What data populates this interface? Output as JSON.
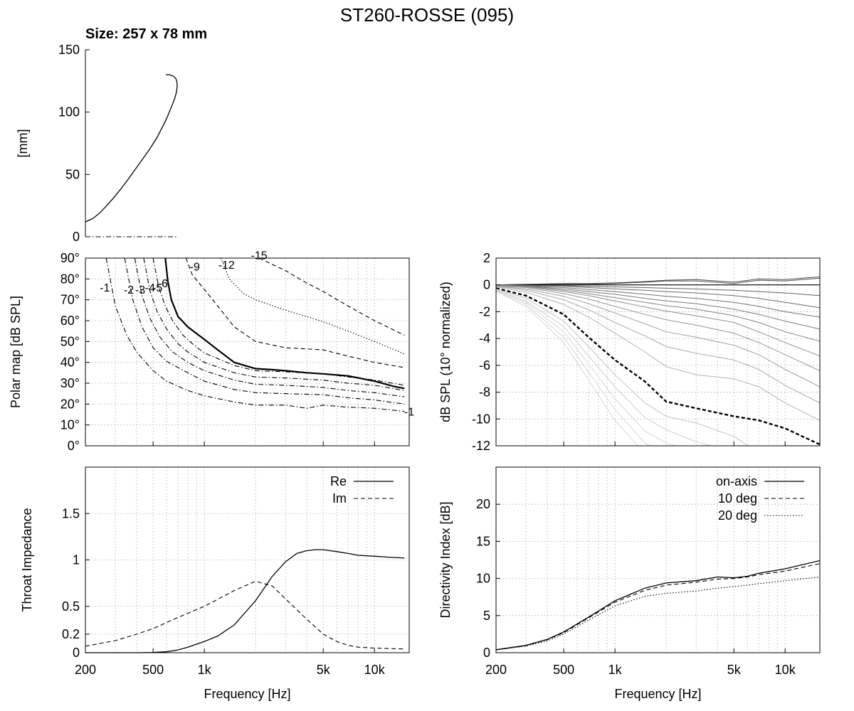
{
  "figure": {
    "title": "ST260-ROSSE (095)",
    "subtitle": "Size: 257 x 78 mm"
  },
  "chart_data": [
    {
      "id": "profile",
      "type": "line",
      "ylabel": "[mm]",
      "ylim": [
        0,
        150
      ],
      "yticks": [
        0,
        50,
        100,
        150
      ],
      "grid": false,
      "series": [
        {
          "style": "solid",
          "x": [
            0,
            10,
            20,
            30,
            40,
            50,
            60,
            70,
            80,
            90,
            100,
            110,
            115,
            120,
            125,
            128,
            129,
            128.5,
            127,
            123,
            118,
            113
          ],
          "y": [
            12,
            14.5,
            19,
            25,
            31.5,
            38.5,
            46,
            54,
            62,
            70,
            79,
            90,
            96,
            103,
            110,
            116,
            121,
            124.5,
            127,
            129,
            130,
            130
          ]
        },
        {
          "style": "dashdot",
          "x": [
            0,
            128.5
          ],
          "y": [
            0,
            0
          ]
        }
      ]
    },
    {
      "id": "polar_map",
      "type": "line",
      "ylabel": "Polar map [dB SPL]",
      "xscale": "log",
      "xlim": [
        200,
        16000
      ],
      "ylim": [
        0,
        90
      ],
      "yticks": [
        "0°",
        "10°",
        "20°",
        "30°",
        "40°",
        "50°",
        "60°",
        "70°",
        "80°",
        "90°"
      ],
      "grid": true,
      "series": [
        {
          "name": "-1",
          "style": "dashdot",
          "x": [
            265,
            300,
            350,
            400,
            500,
            600,
            800,
            1000,
            1500,
            2000,
            3000,
            4000,
            5000,
            7000,
            10000,
            15000
          ],
          "y": [
            90,
            67,
            53,
            45,
            36,
            31,
            26.5,
            24,
            21,
            19.5,
            19.5,
            18,
            19.5,
            18.5,
            18,
            16.5
          ]
        },
        {
          "name": "-2",
          "style": "dashdot",
          "x": [
            340,
            380,
            430,
            500,
            600,
            800,
            1000,
            1500,
            2000,
            3000,
            5000,
            7000,
            10000,
            15000
          ],
          "y": [
            90,
            70,
            57,
            47,
            40.5,
            35,
            31,
            27,
            25.5,
            25,
            24.5,
            23,
            22,
            20
          ]
        },
        {
          "name": "-3",
          "style": "dashdot",
          "x": [
            390,
            430,
            480,
            550,
            650,
            800,
            1000,
            1500,
            2000,
            3000,
            5000,
            7000,
            10000,
            15000
          ],
          "y": [
            90,
            72,
            61,
            52,
            45,
            40,
            36,
            31.5,
            29.5,
            29,
            28,
            26.5,
            25.5,
            23.5
          ]
        },
        {
          "name": "-4",
          "style": "dashdot",
          "x": [
            440,
            480,
            530,
            600,
            700,
            800,
            1000,
            1500,
            2000,
            3000,
            5000,
            7000,
            10000,
            15000
          ],
          "y": [
            90,
            74,
            64,
            56,
            49,
            45,
            40,
            35,
            33,
            32.5,
            31.5,
            30,
            29,
            26.5
          ]
        },
        {
          "name": "-5",
          "style": "dashdot",
          "x": [
            500,
            540,
            590,
            650,
            750,
            850,
            1000,
            1500,
            2000,
            3000,
            5000,
            7000,
            10000,
            15000
          ],
          "y": [
            90,
            76,
            67,
            60,
            53,
            49,
            44.5,
            38.5,
            36,
            35.5,
            34.5,
            33,
            31.5,
            29
          ]
        },
        {
          "name": "-6",
          "style": "solid-bold",
          "x": [
            590,
            610,
            640,
            700,
            800,
            1000,
            1200,
            1500,
            2000,
            2500,
            3000,
            4000,
            5000,
            7000,
            10000,
            13000,
            15000
          ],
          "y": [
            90,
            79,
            70,
            62,
            57,
            51,
            46,
            40,
            37,
            36.5,
            36,
            35,
            34.5,
            33.5,
            31,
            28.5,
            27.5
          ]
        },
        {
          "name": "-9",
          "style": "dashed",
          "x": [
            780,
            850,
            1000,
            1200,
            1500,
            2000,
            3000,
            5000,
            7000,
            10000,
            15000
          ],
          "y": [
            90,
            82,
            75,
            67,
            57,
            50,
            47,
            46,
            43,
            40,
            37.5
          ]
        },
        {
          "name": "-12",
          "style": "dotted",
          "x": [
            1250,
            1400,
            1700,
            2000,
            3000,
            5000,
            7000,
            10000,
            15000
          ],
          "y": [
            90,
            80,
            73,
            70,
            65,
            59.5,
            55,
            50,
            44
          ]
        },
        {
          "name": "-15",
          "style": "dashed",
          "x": [
            2100,
            2500,
            3000,
            4000,
            5000,
            7000,
            10000,
            15000
          ],
          "y": [
            90,
            87,
            84,
            78,
            74,
            67,
            60,
            53
          ]
        }
      ],
      "annotations": [
        {
          "text": "-1",
          "x": 260,
          "y": 76
        },
        {
          "text": "-2",
          "x": 360,
          "y": 75
        },
        {
          "text": "-3",
          "x": 420,
          "y": 75
        },
        {
          "text": "-4",
          "x": 480,
          "y": 76
        },
        {
          "text": "-5",
          "x": 530,
          "y": 76
        },
        {
          "text": "-6",
          "x": 570,
          "y": 78
        },
        {
          "text": "-9",
          "x": 880,
          "y": 86
        },
        {
          "text": "-12",
          "x": 1350,
          "y": 87
        },
        {
          "text": "-15",
          "x": 2100,
          "y": 91.5
        },
        {
          "text": "-1",
          "x": 16000,
          "y": 16.5
        }
      ]
    },
    {
      "id": "normalized_spl",
      "type": "line",
      "ylabel": "dB SPL (10° normalized)",
      "xscale": "log",
      "xlim": [
        200,
        16000
      ],
      "ylim": [
        -12,
        2
      ],
      "yticks": [
        -12,
        -10,
        -8,
        -6,
        -4,
        -2,
        0,
        2
      ],
      "grid": true,
      "x": [
        200,
        300,
        500,
        700,
        1000,
        1500,
        2000,
        3000,
        5000,
        7000,
        10000,
        16000
      ],
      "series": [
        {
          "style": "thin",
          "y": [
            0,
            0.05,
            0.1,
            0.1,
            0.15,
            0.25,
            0.35,
            0.4,
            0.2,
            0.45,
            0.4,
            0.6
          ]
        },
        {
          "style": "thin",
          "y": [
            0,
            0.03,
            0.05,
            0.05,
            0.1,
            0.2,
            0.3,
            0.3,
            0.1,
            0.35,
            0.3,
            0.5
          ]
        },
        {
          "style": "axis",
          "y": [
            0,
            0,
            0,
            0,
            0,
            0,
            0,
            0,
            0,
            0,
            0,
            0
          ]
        },
        {
          "style": "thin",
          "y": [
            0,
            -0.03,
            -0.05,
            -0.1,
            -0.15,
            -0.2,
            -0.25,
            -0.3,
            -0.4,
            -0.5,
            -0.6,
            -0.8
          ]
        },
        {
          "style": "thin",
          "y": [
            0,
            -0.05,
            -0.1,
            -0.2,
            -0.3,
            -0.4,
            -0.5,
            -0.6,
            -0.8,
            -1.0,
            -1.3,
            -1.7
          ]
        },
        {
          "style": "thin",
          "y": [
            0,
            -0.08,
            -0.2,
            -0.35,
            -0.5,
            -0.7,
            -0.85,
            -1.0,
            -1.3,
            -1.6,
            -2.0,
            -2.4
          ]
        },
        {
          "style": "thin",
          "y": [
            0,
            -0.1,
            -0.3,
            -0.5,
            -0.7,
            -1.0,
            -1.2,
            -1.4,
            -1.8,
            -2.2,
            -2.7,
            -3.3
          ]
        },
        {
          "style": "thin",
          "y": [
            -0.02,
            -0.12,
            -0.4,
            -0.65,
            -0.95,
            -1.3,
            -1.55,
            -1.8,
            -2.3,
            -2.8,
            -3.5,
            -4.2
          ]
        },
        {
          "style": "thin",
          "y": [
            -0.03,
            -0.15,
            -0.5,
            -0.8,
            -1.2,
            -1.65,
            -1.95,
            -2.3,
            -2.8,
            -3.5,
            -4.3,
            -5.3
          ]
        },
        {
          "style": "thin",
          "y": [
            -0.05,
            -0.2,
            -0.65,
            -1.05,
            -1.6,
            -2.2,
            -2.6,
            -3.0,
            -3.6,
            -4.3,
            -5.2,
            -6.4
          ]
        },
        {
          "style": "thin",
          "y": [
            -0.08,
            -0.3,
            -0.85,
            -1.4,
            -2.1,
            -2.9,
            -3.5,
            -3.9,
            -4.5,
            -5.2,
            -6.3,
            -7.6
          ]
        },
        {
          "style": "thin",
          "y": [
            -0.1,
            -0.4,
            -1.1,
            -1.85,
            -2.8,
            -3.8,
            -4.6,
            -5.1,
            -5.6,
            -6.3,
            -7.5,
            -8.8
          ]
        },
        {
          "style": "thin",
          "y": [
            -0.15,
            -0.55,
            -1.45,
            -2.4,
            -3.6,
            -5.0,
            -6.1,
            -6.7,
            -7.0,
            -7.6,
            -8.8,
            -10.1
          ]
        },
        {
          "style": "dashed-bold",
          "y": [
            -0.25,
            -0.8,
            -2.2,
            -3.9,
            -5.6,
            -7.2,
            -8.7,
            -9.2,
            -9.8,
            -10.1,
            -10.7,
            -11.9
          ]
        },
        {
          "style": "thin",
          "y": [
            -0.3,
            -1.0,
            -2.7,
            -4.6,
            -6.7,
            -8.8,
            -9.8,
            -10.3,
            -11.3,
            -12.5,
            -13,
            -13
          ]
        },
        {
          "style": "thin",
          "y": [
            -0.35,
            -1.2,
            -3.1,
            -5.3,
            -7.6,
            -9.9,
            -10.8,
            -11.7,
            -12.5,
            -13,
            -13,
            -13
          ]
        },
        {
          "style": "thin",
          "y": [
            -0.4,
            -1.3,
            -3.5,
            -5.9,
            -8.5,
            -10.9,
            -11.8,
            -12.5,
            -13,
            -13,
            -13,
            -13
          ]
        },
        {
          "style": "thin",
          "y": [
            -0.45,
            -1.45,
            -3.9,
            -6.5,
            -9.3,
            -11.8,
            -12.6,
            -13,
            -13,
            -13,
            -13,
            -13
          ]
        },
        {
          "style": "thin",
          "y": [
            -0.5,
            -1.6,
            -4.3,
            -7.1,
            -10.1,
            -12.6,
            -13,
            -13,
            -13,
            -13,
            -13,
            -13
          ]
        }
      ]
    },
    {
      "id": "throat_impedance",
      "type": "line",
      "ylabel": "Throat Impedance",
      "xlabel": "Frequency [Hz]",
      "xscale": "log",
      "xlim": [
        200,
        16000
      ],
      "xticks": [
        "200",
        "500",
        "1k",
        "5k",
        "10k"
      ],
      "ylim": [
        0,
        2
      ],
      "yticks": [
        0,
        0.2,
        0.5,
        1,
        1.5
      ],
      "grid": true,
      "legend": "top-right",
      "series": [
        {
          "name": "Re",
          "style": "solid",
          "x": [
            200,
            400,
            500,
            600,
            700,
            800,
            1000,
            1200,
            1500,
            2000,
            2500,
            3000,
            3500,
            4000,
            4500,
            5000,
            6000,
            7000,
            8000,
            10000,
            12000,
            15000
          ],
          "y": [
            0,
            0,
            0.003,
            0.01,
            0.03,
            0.06,
            0.12,
            0.18,
            0.3,
            0.56,
            0.82,
            0.98,
            1.07,
            1.1,
            1.11,
            1.11,
            1.09,
            1.07,
            1.05,
            1.04,
            1.03,
            1.02
          ]
        },
        {
          "name": "Im",
          "style": "dashed",
          "x": [
            200,
            300,
            400,
            500,
            700,
            1000,
            1500,
            2000,
            2500,
            3000,
            4000,
            5000,
            6000,
            7000,
            8000,
            10000,
            12000,
            15000
          ],
          "y": [
            0.07,
            0.13,
            0.2,
            0.26,
            0.38,
            0.5,
            0.67,
            0.77,
            0.72,
            0.58,
            0.36,
            0.2,
            0.12,
            0.08,
            0.06,
            0.05,
            0.045,
            0.04
          ]
        }
      ]
    },
    {
      "id": "directivity_index",
      "type": "line",
      "ylabel": "Directivity Index [dB]",
      "xlabel": "Frequency [Hz]",
      "xscale": "log",
      "xlim": [
        200,
        16000
      ],
      "xticks": [
        "200",
        "500",
        "1k",
        "5k",
        "10k"
      ],
      "ylim": [
        0,
        25
      ],
      "yticks": [
        0,
        5,
        10,
        15,
        20
      ],
      "grid": true,
      "legend": "top-right",
      "series": [
        {
          "name": "on-axis",
          "style": "solid",
          "x": [
            200,
            300,
            400,
            500,
            700,
            1000,
            1500,
            2000,
            3000,
            4000,
            5000,
            6000,
            7000,
            10000,
            16000
          ],
          "y": [
            0.4,
            1.0,
            1.8,
            2.8,
            4.8,
            7.0,
            8.7,
            9.4,
            9.7,
            10.2,
            10.1,
            10.3,
            10.7,
            11.3,
            12.4
          ]
        },
        {
          "name": "10 deg",
          "style": "dashed",
          "x": [
            200,
            300,
            400,
            500,
            700,
            1000,
            1500,
            2000,
            3000,
            4000,
            5000,
            6000,
            7000,
            10000,
            16000
          ],
          "y": [
            0.4,
            0.95,
            1.75,
            2.7,
            4.7,
            6.8,
            8.4,
            9.1,
            9.5,
            9.9,
            10.0,
            10.2,
            10.5,
            11.0,
            12.0
          ]
        },
        {
          "name": "20 deg",
          "style": "dotted",
          "x": [
            200,
            300,
            400,
            500,
            700,
            1000,
            1500,
            2000,
            3000,
            4000,
            5000,
            6000,
            7000,
            10000,
            16000
          ],
          "y": [
            0.35,
            0.9,
            1.6,
            2.5,
            4.4,
            6.3,
            7.6,
            8.0,
            8.3,
            8.7,
            8.9,
            9.1,
            9.3,
            9.7,
            10.2
          ]
        }
      ]
    }
  ]
}
